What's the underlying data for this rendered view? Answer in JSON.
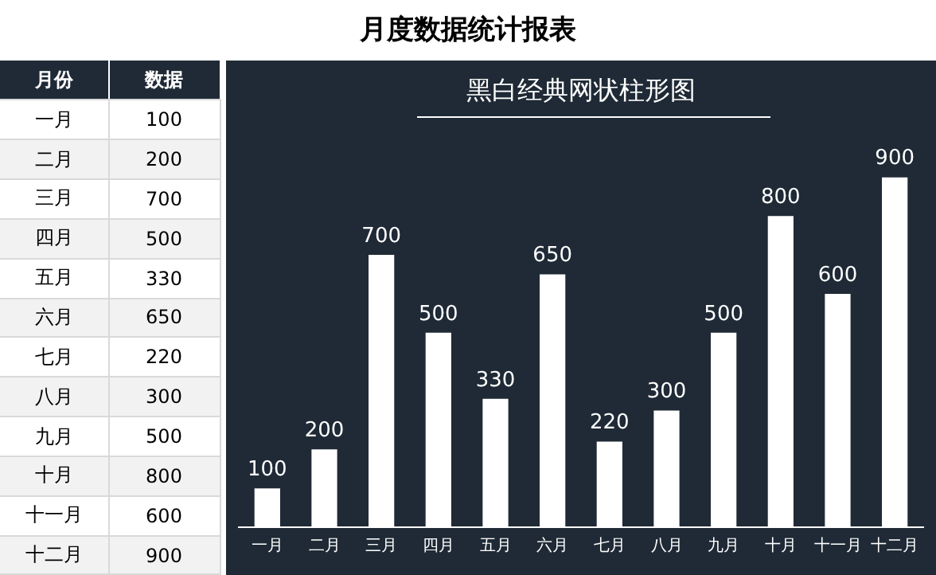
{
  "chart_data": [
    {
      "type": "other",
      "annotations": [
        "月份",
        "数据"
      ],
      "categories": [
        "一月",
        "二月",
        "三月",
        "四月",
        "五月",
        "六月",
        "七月",
        "八月",
        "九月",
        "十月",
        "十一月",
        "十二月"
      ],
      "values": [
        100,
        200,
        700,
        500,
        330,
        650,
        220,
        300,
        500,
        800,
        600,
        900
      ],
      "data_labels": true
    },
    {
      "type": "bar",
      "title": "月度数据统计报表",
      "subtitle": "黑白经典网状柱形图",
      "categories": [
        "一月",
        "二月",
        "三月",
        "四月",
        "五月",
        "六月",
        "七月",
        "八月",
        "九月",
        "十月",
        "十一月",
        "十二月"
      ],
      "values": [
        100,
        200,
        700,
        500,
        330,
        650,
        220,
        300,
        500,
        800,
        600,
        900
      ],
      "color": "#ffffff",
      "data_labels": true,
      "grid": false,
      "legend": false
    }
  ]
}
